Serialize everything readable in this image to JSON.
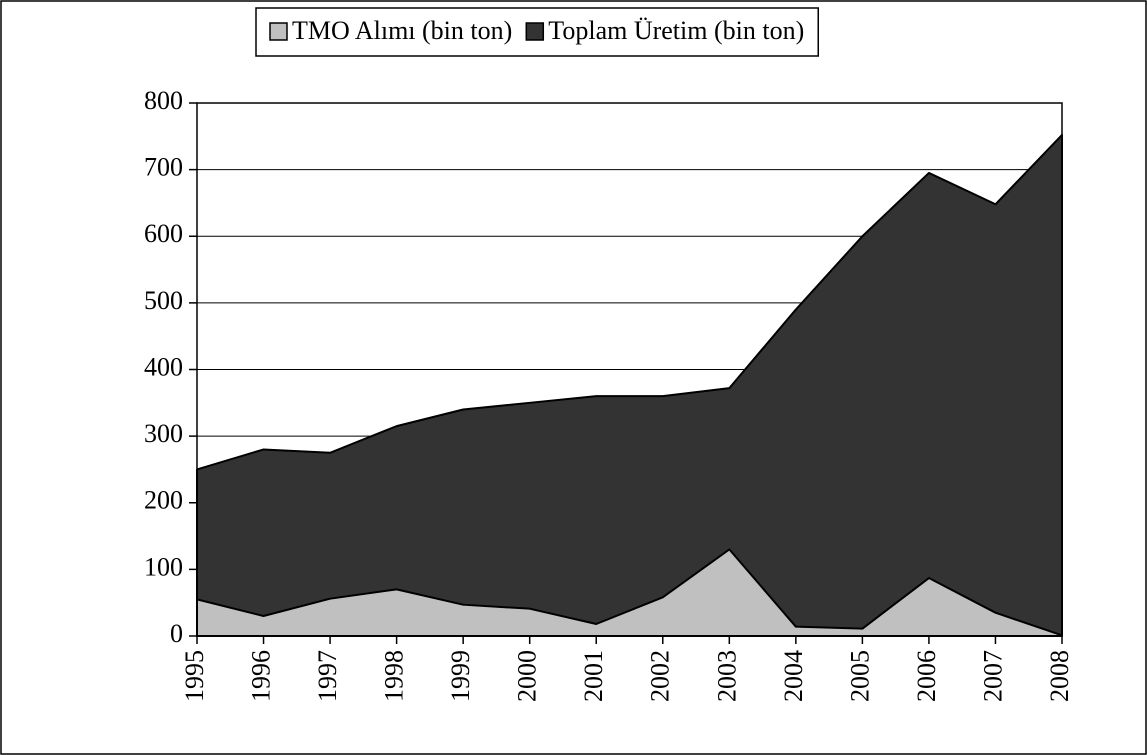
{
  "chart_data": {
    "type": "area",
    "categories": [
      "1995",
      "1996",
      "1997",
      "1998",
      "1999",
      "2000",
      "2001",
      "2002",
      "2003",
      "2004",
      "2005",
      "2006",
      "2007",
      "2008"
    ],
    "series": [
      {
        "name": "TMO Alımı (bin ton)",
        "color": "#c0c0c0",
        "values": [
          55,
          30,
          56,
          70,
          47,
          41,
          18,
          58,
          130,
          14,
          11,
          87,
          35,
          1
        ]
      },
      {
        "name": "Toplam Üretim (bin ton)",
        "color": "#333333",
        "values": [
          250,
          280,
          275,
          315,
          340,
          350,
          360,
          360,
          372,
          490,
          600,
          695,
          648,
          752
        ]
      }
    ],
    "ylim": [
      0,
      800
    ],
    "yticks": [
      0,
      100,
      200,
      300,
      400,
      500,
      600,
      700,
      800
    ],
    "grid": true,
    "legend": "top"
  }
}
